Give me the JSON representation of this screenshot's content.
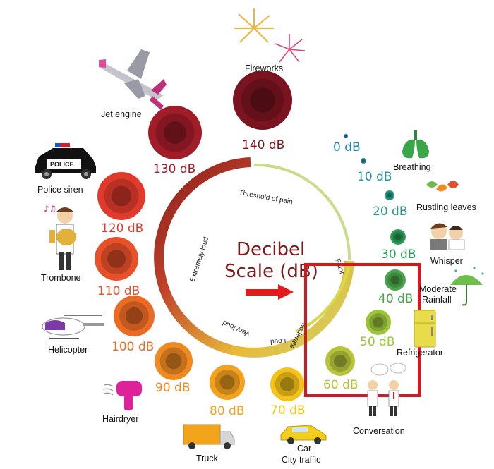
{
  "title": {
    "line1": "Decibel",
    "line2": "Scale (dB)"
  },
  "arc_labels": {
    "threshold": "Threshold of pain",
    "extremely_loud": "Extremely loud",
    "very_loud": "Very loud",
    "loud": "Loud",
    "moderate": "Moderate",
    "faint": "Faint"
  },
  "levels": [
    {
      "db": "0 dB",
      "source": "",
      "color": "#2a86a8"
    },
    {
      "db": "10 dB",
      "source": "Breathing",
      "color": "#2b8fa0"
    },
    {
      "db": "20 dB",
      "source": "Rustling leaves",
      "color": "#239a86"
    },
    {
      "db": "30 dB",
      "source": "Whisper",
      "color": "#2b9c5a"
    },
    {
      "db": "40 dB",
      "source": "Moderate Rainfall",
      "color": "#4aa44a"
    },
    {
      "db": "50 dB",
      "source": "Refrigerator",
      "color": "#9cc43a"
    },
    {
      "db": "60 dB",
      "source": "Conversation",
      "color": "#b7c43a"
    },
    {
      "db": "70 dB",
      "source": "Car City traffic",
      "color": "#f5c21a"
    },
    {
      "db": "80 dB",
      "source": "Truck",
      "color": "#f3a11e"
    },
    {
      "db": "90 dB",
      "source": "Hairdryer",
      "color": "#ef8a22"
    },
    {
      "db": "100 dB",
      "source": "Helicopter",
      "color": "#ec6b24"
    },
    {
      "db": "110 dB",
      "source": "Trombone",
      "color": "#e8502a"
    },
    {
      "db": "120 dB",
      "source": "Police siren",
      "color": "#e03a2c"
    },
    {
      "db": "130 dB",
      "source": "Jet engine",
      "color": "#a01c28"
    },
    {
      "db": "140 dB",
      "source": "Fireworks",
      "color": "#7a1420"
    }
  ],
  "source_labels": {
    "fireworks": "Fireworks",
    "jet": "Jet engine",
    "police": "Police siren",
    "trombone": "Trombone",
    "helicopter": "Helicopter",
    "hairdryer": "Hairdryer",
    "truck": "Truck",
    "car": "Car",
    "city": "City traffic",
    "conversation": "Conversation",
    "refrigerator": "Refrigerator",
    "rain1": "Moderate",
    "rain2": "Rainfall",
    "whisper": "Whisper",
    "leaves": "Rustling leaves",
    "breathing": "Breathing"
  },
  "police_sign": "POLICE",
  "highlight_color": "#d9161c"
}
